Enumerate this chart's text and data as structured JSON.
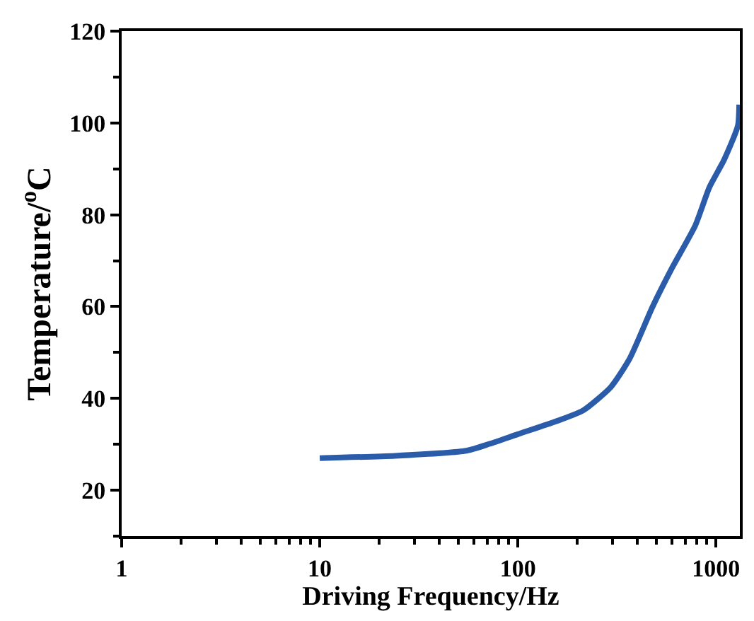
{
  "chart_data": {
    "type": "line",
    "xlabel": "Driving Frequency/Hz",
    "ylabel": "Temperature/$^{o}$C",
    "log": "x",
    "x": [
      10,
      24,
      55,
      72,
      100,
      163,
      214,
      295,
      367,
      479,
      600,
      787,
      927,
      1100,
      1290,
      1310
    ],
    "series": [
      {
        "color": "#2a5caa",
        "values": [
          27,
          27.5,
          28.6,
          30.1,
          32.2,
          35.3,
          37.4,
          42.5,
          48.7,
          60,
          68.4,
          77.7,
          86,
          92,
          99.4,
          104
        ]
      }
    ],
    "xlim": [
      1,
      1320
    ],
    "xticks": [
      1,
      10,
      100,
      1000
    ],
    "ylim": [
      10,
      120
    ],
    "yticks": [
      20,
      40,
      60,
      80,
      100,
      120
    ],
    "marker": "none",
    "line_style": "solid"
  }
}
